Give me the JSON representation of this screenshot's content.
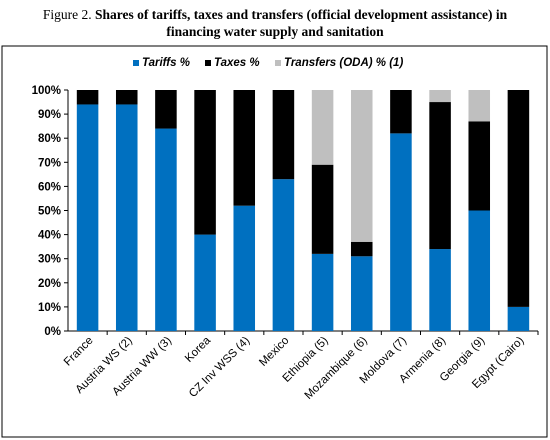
{
  "figure": {
    "caption_prefix": "Figure 2. ",
    "caption_bold_line1": "Shares of tariffs, taxes and transfers (official development assistance) in",
    "caption_bold_line2": "financing water supply and sanitation"
  },
  "chart_data": {
    "type": "bar",
    "stacked": true,
    "categories": [
      "France",
      "Austria WS (2)",
      "Austria WW (3)",
      "Korea",
      "CZ Inv WSS (4)",
      "Mexico",
      "Ethiopia (5)",
      "Mozambique (6)",
      "Moldova (7)",
      "Armenia (8)",
      "Georgia (9)",
      "Egypt (Cairo)"
    ],
    "series": [
      {
        "name": "Tariffs %",
        "color": "#0070C0",
        "values": [
          94,
          94,
          84,
          40,
          52,
          63,
          32,
          31,
          82,
          34,
          50,
          10
        ]
      },
      {
        "name": "Taxes %",
        "color": "#000000",
        "values": [
          6,
          6,
          16,
          60,
          48,
          37,
          37,
          6,
          18,
          61,
          37,
          90
        ]
      },
      {
        "name": "Transfers (ODA) % (1)",
        "color": "#BFBFBF",
        "values": [
          0,
          0,
          0,
          0,
          0,
          0,
          31,
          63,
          0,
          5,
          13,
          0
        ]
      }
    ],
    "ylim": [
      0,
      100
    ],
    "yticks": [
      "0%",
      "10%",
      "20%",
      "30%",
      "40%",
      "50%",
      "60%",
      "70%",
      "80%",
      "90%",
      "100%"
    ],
    "legend_position": "top",
    "grid": false
  }
}
